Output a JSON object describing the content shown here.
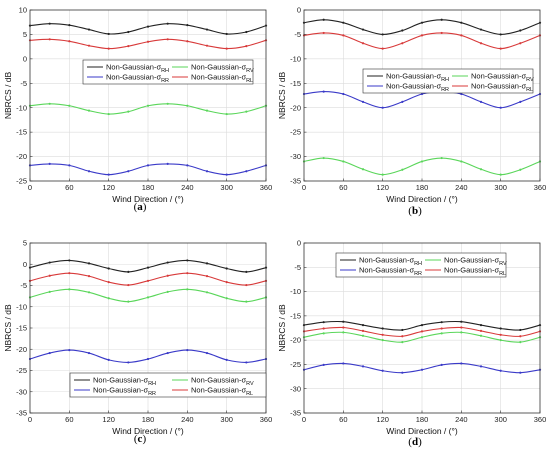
{
  "figure": {
    "subfigure_labels": [
      "(a)",
      "(b)",
      "(c)",
      "(d)"
    ]
  },
  "series_colors": {
    "RH": "#222222",
    "RV": "#5ad65a",
    "RR": "#3a3ac8",
    "RL": "#d83a3a"
  },
  "chart_data": [
    {
      "type": "line",
      "id": "a",
      "label": "(a)",
      "xlabel": "Wind Direction / (°)",
      "ylabel": "NBRCS / dB",
      "xlim": [
        0,
        360
      ],
      "ylim": [
        -25,
        10
      ],
      "xticks": [
        0,
        60,
        120,
        180,
        240,
        300,
        360
      ],
      "yticks": [
        10,
        5,
        0,
        -5,
        -10,
        -15,
        -20,
        -25
      ],
      "grid": true,
      "legend_position": "upper-middle",
      "series": [
        {
          "key": "RH",
          "name": "Non-Gaussian-σ",
          "sub": "RH",
          "x": [
            0,
            30,
            60,
            90,
            120,
            150,
            180,
            210,
            240,
            270,
            300,
            330,
            360
          ],
          "values": [
            6.8,
            7.2,
            6.9,
            6.0,
            5.1,
            5.5,
            6.6,
            7.2,
            6.9,
            6.0,
            5.1,
            5.5,
            6.8
          ]
        },
        {
          "key": "RV",
          "name": "Non-Gaussian-σ",
          "sub": "RV",
          "x": [
            0,
            30,
            60,
            90,
            120,
            150,
            180,
            210,
            240,
            270,
            300,
            330,
            360
          ],
          "values": [
            -9.6,
            -9.2,
            -9.6,
            -10.6,
            -11.3,
            -10.8,
            -9.6,
            -9.2,
            -9.6,
            -10.6,
            -11.3,
            -10.8,
            -9.6
          ]
        },
        {
          "key": "RR",
          "name": "Non-Gaussian-σ",
          "sub": "RR",
          "x": [
            0,
            30,
            60,
            90,
            120,
            150,
            180,
            210,
            240,
            270,
            300,
            330,
            360
          ],
          "values": [
            -21.8,
            -21.5,
            -21.8,
            -23.0,
            -23.7,
            -23.0,
            -21.8,
            -21.5,
            -21.8,
            -23.0,
            -23.7,
            -23.0,
            -21.8
          ]
        },
        {
          "key": "RL",
          "name": "Non-Gaussian-σ",
          "sub": "RL",
          "x": [
            0,
            30,
            60,
            90,
            120,
            150,
            180,
            210,
            240,
            270,
            300,
            330,
            360
          ],
          "values": [
            3.8,
            4.0,
            3.6,
            2.7,
            2.1,
            2.6,
            3.5,
            4.0,
            3.6,
            2.7,
            2.1,
            2.6,
            3.8
          ]
        }
      ]
    },
    {
      "type": "line",
      "id": "b",
      "label": "(b)",
      "xlabel": "Wind Direction / (°)",
      "ylabel": "NBRCS / dB",
      "xlim": [
        0,
        360
      ],
      "ylim": [
        -35,
        0
      ],
      "xticks": [
        0,
        60,
        120,
        180,
        240,
        300,
        360
      ],
      "yticks": [
        0,
        -5,
        -10,
        -15,
        -20,
        -25,
        -30,
        -35
      ],
      "grid": true,
      "legend_position": "upper-middle",
      "series": [
        {
          "key": "RH",
          "name": "Non-Gaussian-σ",
          "sub": "RH",
          "x": [
            0,
            30,
            60,
            90,
            120,
            150,
            180,
            210,
            240,
            270,
            300,
            330,
            360
          ],
          "values": [
            -2.6,
            -2.0,
            -2.6,
            -4.0,
            -5.0,
            -4.2,
            -2.6,
            -2.0,
            -2.6,
            -4.0,
            -5.0,
            -4.2,
            -2.6
          ]
        },
        {
          "key": "RV",
          "name": "Non-Gaussian-σ",
          "sub": "RV",
          "x": [
            0,
            30,
            60,
            90,
            120,
            150,
            180,
            210,
            240,
            270,
            300,
            330,
            360
          ],
          "values": [
            -31.0,
            -30.3,
            -31.0,
            -32.6,
            -33.7,
            -32.7,
            -31.0,
            -30.3,
            -31.0,
            -32.6,
            -33.7,
            -32.7,
            -31.0
          ]
        },
        {
          "key": "RR",
          "name": "Non-Gaussian-σ",
          "sub": "RR",
          "x": [
            0,
            30,
            60,
            90,
            120,
            150,
            180,
            210,
            240,
            270,
            300,
            330,
            360
          ],
          "values": [
            -17.2,
            -16.7,
            -17.2,
            -18.8,
            -20.0,
            -18.8,
            -17.2,
            -16.7,
            -17.2,
            -18.8,
            -20.0,
            -18.8,
            -17.2
          ]
        },
        {
          "key": "RL",
          "name": "Non-Gaussian-σ",
          "sub": "RL",
          "x": [
            0,
            30,
            60,
            90,
            120,
            150,
            180,
            210,
            240,
            270,
            300,
            330,
            360
          ],
          "values": [
            -5.2,
            -4.7,
            -5.2,
            -6.8,
            -7.9,
            -6.8,
            -5.2,
            -4.7,
            -5.2,
            -6.8,
            -7.9,
            -6.8,
            -5.2
          ]
        }
      ]
    },
    {
      "type": "line",
      "id": "c",
      "label": "(c)",
      "xlabel": "Wind Direction / (°)",
      "ylabel": "NBRCS / dB",
      "xlim": [
        0,
        360
      ],
      "ylim": [
        -35,
        5
      ],
      "xticks": [
        0,
        60,
        120,
        180,
        240,
        300,
        360
      ],
      "yticks": [
        5,
        0,
        -5,
        -10,
        -15,
        -20,
        -25,
        -30,
        -35
      ],
      "grid": true,
      "legend_position": "lower-middle",
      "series": [
        {
          "key": "RH",
          "name": "Non-Gaussian-σ",
          "sub": "RH",
          "x": [
            0,
            30,
            60,
            90,
            120,
            150,
            180,
            210,
            240,
            270,
            300,
            330,
            360
          ],
          "values": [
            -0.8,
            0.4,
            0.9,
            0.2,
            -1.0,
            -1.8,
            -0.8,
            0.4,
            0.9,
            0.2,
            -1.0,
            -1.8,
            -0.8
          ]
        },
        {
          "key": "RV",
          "name": "Non-Gaussian-σ",
          "sub": "RV",
          "x": [
            0,
            30,
            60,
            90,
            120,
            150,
            180,
            210,
            240,
            270,
            300,
            330,
            360
          ],
          "values": [
            -7.8,
            -6.5,
            -5.9,
            -6.6,
            -8.0,
            -8.8,
            -7.8,
            -6.5,
            -5.9,
            -6.6,
            -8.0,
            -8.8,
            -7.8
          ]
        },
        {
          "key": "RR",
          "name": "Non-Gaussian-σ",
          "sub": "RR",
          "x": [
            0,
            30,
            60,
            90,
            120,
            150,
            180,
            210,
            240,
            270,
            300,
            330,
            360
          ],
          "values": [
            -22.3,
            -20.9,
            -20.2,
            -20.9,
            -22.5,
            -23.1,
            -22.3,
            -20.9,
            -20.2,
            -20.9,
            -22.5,
            -23.1,
            -22.3
          ]
        },
        {
          "key": "RL",
          "name": "Non-Gaussian-σ",
          "sub": "RL",
          "x": [
            0,
            30,
            60,
            90,
            120,
            150,
            180,
            210,
            240,
            270,
            300,
            330,
            360
          ],
          "values": [
            -3.9,
            -2.7,
            -2.1,
            -2.8,
            -4.2,
            -4.9,
            -3.9,
            -2.7,
            -2.1,
            -2.8,
            -4.2,
            -4.9,
            -3.9
          ]
        }
      ]
    },
    {
      "type": "line",
      "id": "d",
      "label": "(d)",
      "xlabel": "Wind Direction / (°)",
      "ylabel": "NBRCS / dB",
      "xlim": [
        0,
        360
      ],
      "ylim": [
        -35,
        0
      ],
      "xticks": [
        0,
        60,
        120,
        180,
        240,
        300,
        360
      ],
      "yticks": [
        0,
        -5,
        -10,
        -15,
        -20,
        -25,
        -30,
        -35
      ],
      "grid": true,
      "legend_position": "top-left",
      "series": [
        {
          "key": "RH",
          "name": "Non-Gaussian-σ",
          "sub": "RH",
          "x": [
            0,
            30,
            60,
            90,
            120,
            150,
            180,
            210,
            240,
            270,
            300,
            330,
            360
          ],
          "values": [
            -16.9,
            -16.3,
            -16.2,
            -16.9,
            -17.6,
            -17.9,
            -16.9,
            -16.3,
            -16.2,
            -16.9,
            -17.6,
            -17.9,
            -16.9
          ]
        },
        {
          "key": "RV",
          "name": "Non-Gaussian-σ",
          "sub": "RV",
          "x": [
            0,
            30,
            60,
            90,
            120,
            150,
            180,
            210,
            240,
            270,
            300,
            330,
            360
          ],
          "values": [
            -19.4,
            -18.6,
            -18.4,
            -19.1,
            -20.0,
            -20.4,
            -19.4,
            -18.6,
            -18.4,
            -19.1,
            -20.0,
            -20.4,
            -19.4
          ]
        },
        {
          "key": "RR",
          "name": "Non-Gaussian-σ",
          "sub": "RR",
          "x": [
            0,
            30,
            60,
            90,
            120,
            150,
            180,
            210,
            240,
            270,
            300,
            330,
            360
          ],
          "values": [
            -26.1,
            -25.1,
            -24.8,
            -25.4,
            -26.3,
            -26.7,
            -26.1,
            -25.1,
            -24.8,
            -25.4,
            -26.3,
            -26.7,
            -26.1
          ]
        },
        {
          "key": "RL",
          "name": "Non-Gaussian-σ",
          "sub": "RL",
          "x": [
            0,
            30,
            60,
            90,
            120,
            150,
            180,
            210,
            240,
            270,
            300,
            330,
            360
          ],
          "values": [
            -18.2,
            -17.6,
            -17.4,
            -18.1,
            -18.9,
            -19.2,
            -18.2,
            -17.6,
            -17.4,
            -18.1,
            -18.9,
            -19.2,
            -18.2
          ]
        }
      ]
    }
  ]
}
